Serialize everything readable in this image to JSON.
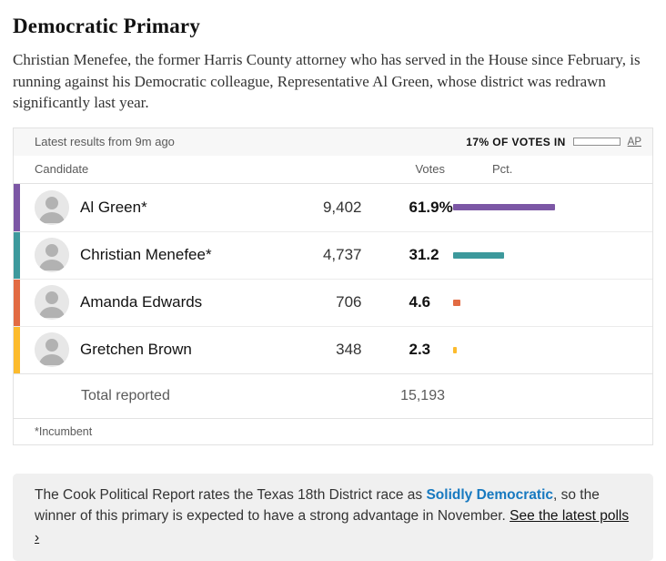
{
  "header": {
    "title": "Democratic Primary",
    "description": "Christian Menefee, the former Harris County attorney who has served in the House since February, is running against his Democratic colleague, Representative Al Green, whose district was redrawn significantly last year."
  },
  "results_card": {
    "status_bar": {
      "latest_results": "Latest results from 9m ago",
      "votes_in_label": "17% OF VOTES IN",
      "votes_in_pct": 17,
      "source_label": "AP"
    },
    "columns": {
      "candidate": "Candidate",
      "votes": "Votes",
      "pct": "Pct."
    },
    "rows": [
      {
        "name": "Al Green*",
        "votes": "9,402",
        "pct": "61.9%",
        "pct_value": 61.9,
        "color": "#7c57a5"
      },
      {
        "name": "Christian Menefee*",
        "votes": "4,737",
        "pct": "31.2",
        "pct_value": 31.2,
        "color": "#3d999c"
      },
      {
        "name": "Amanda Edwards",
        "votes": "706",
        "pct": "4.6",
        "pct_value": 4.6,
        "color": "#e26b43"
      },
      {
        "name": "Gretchen Brown",
        "votes": "348",
        "pct": "2.3",
        "pct_value": 2.3,
        "color": "#fcbb2d"
      }
    ],
    "total": {
      "label": "Total reported",
      "votes": "15,193"
    },
    "footnote": "*Incumbent"
  },
  "note_box": {
    "text_before": "The Cook Political Report rates the Texas 18th District race as ",
    "rating_link": "Solidly Democratic",
    "text_middle": ", so the winner of this primary is expected to have a strong advantage in November. ",
    "polls_link": "See the latest polls ›",
    "rating_color": "#1779c0"
  },
  "chart_data": {
    "type": "table",
    "title": "Democratic Primary",
    "columns": [
      "Candidate",
      "Votes",
      "Pct."
    ],
    "rows": [
      [
        "Al Green*",
        9402,
        61.9
      ],
      [
        "Christian Menefee*",
        4737,
        31.2
      ],
      [
        "Amanda Edwards",
        706,
        4.6
      ],
      [
        "Gretchen Brown",
        348,
        2.3
      ]
    ],
    "total_reported": 15193,
    "pct_of_votes_in": 17,
    "bar_colors": [
      "#7c57a5",
      "#3d999c",
      "#e26b43",
      "#fcbb2d"
    ],
    "bar_scale_note": "bars drawn proportional to Pct., 100% = full column width",
    "source": "AP"
  }
}
